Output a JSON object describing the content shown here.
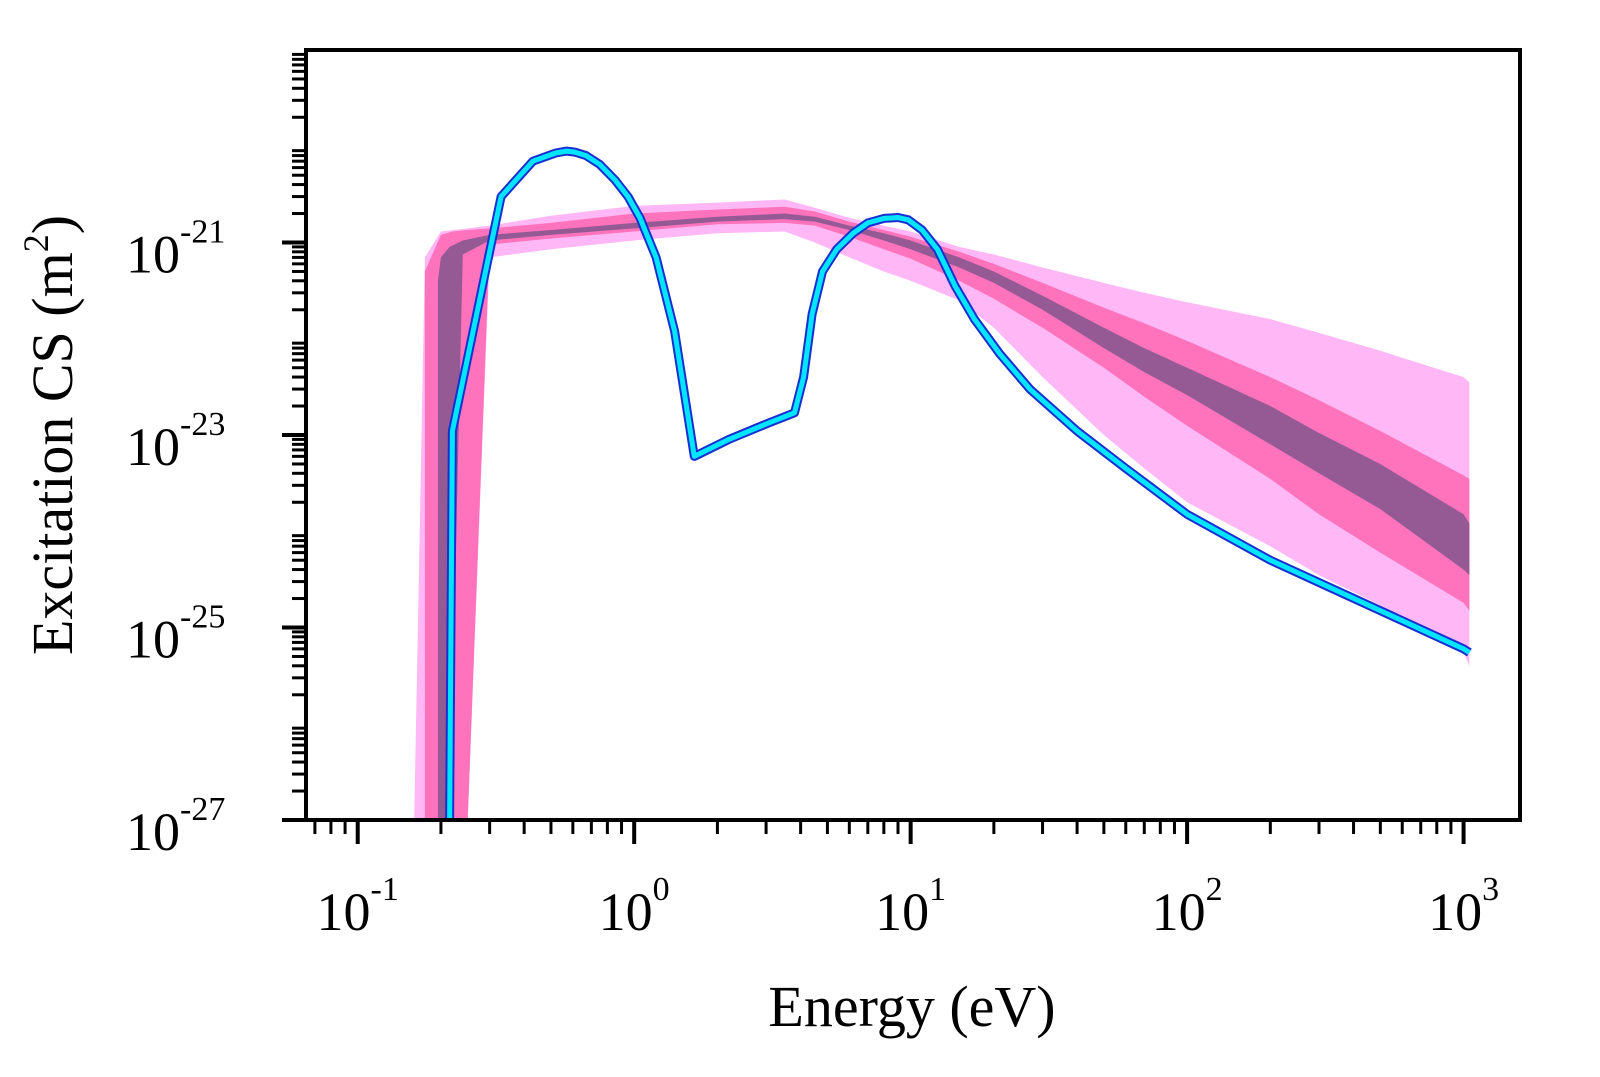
{
  "chart_data": {
    "type": "line",
    "title": "",
    "xlabel": "Energy (eV)",
    "ylabel": {
      "text": "Excitation CS (m",
      "unit_exponent": "2",
      "suffix": ")"
    },
    "x_scale": "log",
    "y_scale": "log",
    "xlim": [
      0.065,
      1600
    ],
    "ylim": [
      1e-27,
      1e-19
    ],
    "x_ticks": [
      {
        "value": 0.1,
        "base": "10",
        "exp": "-1"
      },
      {
        "value": 1,
        "base": "10",
        "exp": "0"
      },
      {
        "value": 10,
        "base": "10",
        "exp": "1"
      },
      {
        "value": 100,
        "base": "10",
        "exp": "2"
      },
      {
        "value": 1000,
        "base": "10",
        "exp": "3"
      }
    ],
    "y_ticks": [
      {
        "value": 1e-21,
        "base": "10",
        "exp": "-21"
      },
      {
        "value": 1e-23,
        "base": "10",
        "exp": "-23"
      },
      {
        "value": 1e-25,
        "base": "10",
        "exp": "-25"
      },
      {
        "value": 1e-27,
        "base": "10",
        "exp": "-27"
      }
    ],
    "grid": false,
    "legend": "none",
    "colors": {
      "outer_band": "#ffb7f5",
      "middle_band": "#ff73bd",
      "inner_band": "#955a93",
      "line_fill": "#00e5ff",
      "line_edge": "#1a2fd0"
    },
    "series": [
      {
        "kind": "band",
        "level": "outer",
        "x": [
          0.16,
          0.175,
          0.2,
          0.25,
          0.3,
          0.5,
          1,
          2,
          3.5,
          4.5,
          6,
          8,
          10,
          15,
          20,
          30,
          50,
          70,
          100,
          200,
          300,
          500,
          1000,
          1050
        ],
        "upper": [
          1e-27,
          7e-22,
          1.3e-21,
          1.4e-21,
          1.5e-21,
          1.9e-21,
          2.4e-21,
          2.6e-21,
          2.8e-21,
          2.3e-21,
          1.8e-21,
          1.5e-21,
          1.3e-21,
          9e-22,
          7.5e-22,
          5.5e-22,
          3.8e-22,
          3e-22,
          2.4e-22,
          1.6e-22,
          1.15e-22,
          7.5e-23,
          4e-23,
          3.5e-23
        ],
        "lower": [
          1e-27,
          1e-27,
          1e-27,
          1e-27,
          7e-22,
          8.5e-22,
          1.05e-21,
          1.25e-21,
          1.3e-21,
          1e-21,
          7e-22,
          5e-22,
          4e-22,
          2.5e-22,
          1.3e-22,
          4e-23,
          1e-23,
          4.5e-24,
          2e-24,
          7e-25,
          3.5e-25,
          1.7e-25,
          5.5e-26,
          4e-26
        ]
      },
      {
        "kind": "band",
        "level": "middle",
        "x": [
          0.175,
          0.2,
          0.22,
          0.25,
          0.3,
          0.5,
          1,
          2,
          3.5,
          4.5,
          6,
          8,
          10,
          15,
          20,
          30,
          50,
          70,
          100,
          200,
          300,
          500,
          1000,
          1050
        ],
        "upper": [
          5e-22,
          1.2e-21,
          1.3e-21,
          1.35e-21,
          1.4e-21,
          1.6e-21,
          2e-21,
          2.2e-21,
          2.35e-21,
          2.1e-21,
          1.65e-21,
          1.35e-21,
          1.15e-21,
          8e-22,
          6e-22,
          3.8e-22,
          2.1e-22,
          1.45e-22,
          9.5e-23,
          4e-23,
          2.3e-23,
          1.1e-23,
          3.8e-24,
          3.5e-24
        ],
        "lower": [
          1e-27,
          1e-27,
          1e-27,
          1e-27,
          9.5e-22,
          1.1e-21,
          1.3e-21,
          1.55e-21,
          1.6e-21,
          1.5e-21,
          1.15e-21,
          8.5e-22,
          6.8e-22,
          4e-22,
          2.6e-22,
          1.3e-22,
          5e-23,
          2.5e-23,
          1.25e-23,
          3.5e-24,
          1.5e-24,
          6e-25,
          1.8e-25,
          1.5e-25
        ]
      },
      {
        "kind": "band",
        "level": "inner",
        "x": [
          0.195,
          0.2,
          0.215,
          0.24,
          0.3,
          0.5,
          1,
          2,
          3.5,
          4.5,
          6,
          8,
          10,
          15,
          20,
          30,
          50,
          70,
          100,
          200,
          300,
          500,
          1000,
          1050
        ],
        "upper": [
          4e-22,
          7e-22,
          9e-22,
          1.05e-21,
          1.2e-21,
          1.35e-21,
          1.6e-21,
          1.85e-21,
          2e-21,
          1.85e-21,
          1.5e-21,
          1.25e-21,
          1.05e-21,
          7e-22,
          5e-22,
          2.8e-22,
          1.3e-22,
          8e-23,
          5e-23,
          2e-23,
          1.05e-23,
          5e-24,
          1.5e-24,
          1.2e-24
        ],
        "lower": [
          1e-27,
          1e-27,
          1e-27,
          7.5e-22,
          1.05e-21,
          1.2e-21,
          1.4e-21,
          1.65e-21,
          1.75e-21,
          1.65e-21,
          1.35e-21,
          1.05e-21,
          8.5e-22,
          5.5e-22,
          3.8e-22,
          2e-22,
          8e-23,
          4.5e-23,
          2.6e-23,
          8e-24,
          4e-24,
          1.7e-24,
          4e-25,
          3.5e-25
        ]
      },
      {
        "kind": "line",
        "x": [
          0.215,
          0.22,
          0.33,
          0.43,
          0.52,
          0.57,
          0.61,
          0.67,
          0.75,
          0.85,
          0.95,
          1.05,
          1.2,
          1.4,
          1.65,
          2.2,
          3.0,
          3.8,
          4.1,
          4.4,
          4.8,
          5.4,
          6.2,
          7.0,
          8.0,
          9.0,
          9.8,
          11.0,
          12.5,
          14.5,
          17.0,
          21,
          27,
          40,
          60,
          100,
          200,
          500,
          1000,
          1050
        ],
        "y": [
          1e-27,
          1.1e-23,
          3e-21,
          7e-21,
          8.5e-21,
          8.9e-21,
          8.7e-21,
          8e-21,
          6.5e-21,
          4.5e-21,
          3e-21,
          1.8e-21,
          7e-22,
          1.2e-22,
          6e-24,
          9e-24,
          1.3e-23,
          1.7e-23,
          4e-23,
          1.8e-22,
          5e-22,
          8.5e-22,
          1.25e-21,
          1.6e-21,
          1.78e-21,
          1.82e-21,
          1.72e-21,
          1.35e-21,
          8.5e-22,
          3.5e-22,
          1.6e-22,
          7e-23,
          3e-23,
          1.1e-23,
          4.5e-24,
          1.5e-24,
          5e-25,
          1.5e-25,
          6e-26,
          5.5e-26
        ]
      }
    ]
  }
}
